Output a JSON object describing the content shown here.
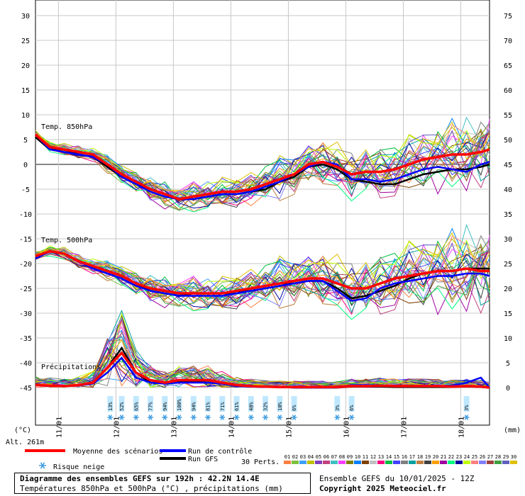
{
  "chart_data": {
    "type": "line",
    "title": "Diagramme des ensembles GEFS sur 192h : 42.2N 14.4E",
    "subtitle": "Températures 850hPa et 500hPa (°C) , précipitations (mm)",
    "ensemble_label": "Ensemble GEFS du 10/01/2025 - 12Z",
    "copyright": "Copyright 2025 Meteociel.fr",
    "left_unit": "(°C)",
    "right_unit": "(mm)",
    "altitude": "Alt. 261m",
    "left_axis": {
      "min": -45,
      "max": 30,
      "ticks": [
        "30",
        "25",
        "20",
        "15",
        "10",
        "5",
        "0",
        "-5",
        "-10",
        "-15",
        "-20",
        "-25",
        "-30",
        "-35",
        "-40",
        "-45"
      ]
    },
    "right_axis": {
      "min": 0,
      "max": 75,
      "ticks": [
        "75",
        "70",
        "65",
        "60",
        "55",
        "50",
        "45",
        "40",
        "35",
        "30",
        "25",
        "20",
        "15",
        "10",
        "5",
        "0"
      ]
    },
    "x_axis": {
      "start_day": 10.6,
      "end_day": 18.5,
      "day_labels": [
        "11/01",
        "12/01",
        "13/01",
        "14/01",
        "15/01",
        "16/01",
        "17/01",
        "18/01"
      ],
      "day_values": [
        11,
        12,
        13,
        14,
        15,
        16,
        17,
        18
      ]
    },
    "panel_labels": {
      "t850": "Temp. 850hPa",
      "t500": "Temp. 500hPa",
      "precip": "Précipitations"
    },
    "legend": {
      "mean": "Moyenne des scénarios",
      "control": "Run de contrôle",
      "gfs": "Run GFS",
      "snow": "Risque neige",
      "perts": "30 Perts."
    },
    "member_labels": [
      "01",
      "02",
      "03",
      "04",
      "05",
      "06",
      "07",
      "08",
      "09",
      "10",
      "11",
      "12",
      "13",
      "14",
      "15",
      "16",
      "17",
      "18",
      "19",
      "20",
      "21",
      "22",
      "23",
      "24",
      "25",
      "26",
      "27",
      "28",
      "29",
      "30"
    ],
    "member_colors": [
      "#ff8040",
      "#80c040",
      "#40a0ff",
      "#c0c000",
      "#8040c0",
      "#c04080",
      "#40c0c0",
      "#ff40ff",
      "#808000",
      "#0080ff",
      "#804000",
      "#c0c0c0",
      "#ff0080",
      "#00c040",
      "#4040ff",
      "#808080",
      "#00a0a0",
      "#c08040",
      "#404040",
      "#ffa000",
      "#a000a0",
      "#00ff80",
      "#0000a0",
      "#c0ff00",
      "#ff8080",
      "#8080ff",
      "#a04040",
      "#40a040",
      "#6060c0",
      "#e0c000"
    ],
    "series_colors": {
      "mean": "#ff0000",
      "control": "#0000ff",
      "gfs": "#000000"
    },
    "snow_risk": [
      {
        "day": 11.9,
        "label": "13%"
      },
      {
        "day": 12.1,
        "label": "52%"
      },
      {
        "day": 12.35,
        "label": "65%"
      },
      {
        "day": 12.6,
        "label": "77%"
      },
      {
        "day": 12.85,
        "label": "94%"
      },
      {
        "day": 13.1,
        "label": "100%"
      },
      {
        "day": 13.35,
        "label": "94%"
      },
      {
        "day": 13.6,
        "label": "81%"
      },
      {
        "day": 13.85,
        "label": "71%"
      },
      {
        "day": 14.1,
        "label": "61%"
      },
      {
        "day": 14.35,
        "label": "48%"
      },
      {
        "day": 14.6,
        "label": "32%"
      },
      {
        "day": 14.85,
        "label": "10%"
      },
      {
        "day": 15.1,
        "label": "6%"
      },
      {
        "day": 15.85,
        "label": "3%"
      },
      {
        "day": 16.1,
        "label": "6%"
      },
      {
        "day": 18.1,
        "label": "3%"
      }
    ],
    "t850": {
      "x": [
        10.6,
        10.85,
        11.1,
        11.35,
        11.6,
        11.85,
        12.1,
        12.35,
        12.6,
        12.85,
        13.1,
        13.35,
        13.6,
        13.85,
        14.1,
        14.35,
        14.6,
        14.85,
        15.1,
        15.35,
        15.6,
        15.85,
        16.1,
        16.35,
        16.6,
        16.85,
        17.1,
        17.35,
        17.6,
        17.85,
        18.1,
        18.35,
        18.5
      ],
      "mean": [
        6,
        3.5,
        3,
        2.5,
        2,
        0,
        -2,
        -3.5,
        -5,
        -6,
        -7,
        -6.5,
        -6,
        -5.5,
        -5.5,
        -5,
        -4,
        -3,
        -2,
        0,
        0.5,
        -0.5,
        -2,
        -1.5,
        -1.5,
        -1,
        0,
        1,
        1.5,
        2,
        2,
        2.5,
        3
      ],
      "control": [
        6,
        3,
        2.5,
        2,
        1.5,
        0,
        -2.5,
        -4,
        -5.5,
        -6.5,
        -7,
        -7,
        -6.5,
        -6,
        -6,
        -5.5,
        -4.5,
        -3.5,
        -2,
        -0.5,
        0.5,
        0,
        -3,
        -3,
        -3.5,
        -3,
        -2,
        -1,
        -0.5,
        -1,
        -1.5,
        0,
        0.5
      ],
      "gfs": [
        5.5,
        3,
        3,
        2,
        1.5,
        -0.5,
        -2.5,
        -4,
        -5,
        -6,
        -7,
        -7,
        -6.5,
        -6,
        -6,
        -5.5,
        -5,
        -3.5,
        -2.5,
        -0.5,
        0,
        -1,
        -3,
        -3.5,
        -4,
        -4,
        -3,
        -2,
        -1.5,
        -1,
        -1,
        -0.5,
        0
      ]
    },
    "t500": {
      "x": [
        10.6,
        10.85,
        11.1,
        11.35,
        11.6,
        11.85,
        12.1,
        12.35,
        12.6,
        12.85,
        13.1,
        13.35,
        13.6,
        13.85,
        14.1,
        14.35,
        14.6,
        14.85,
        15.1,
        15.35,
        15.6,
        15.85,
        16.1,
        16.35,
        16.6,
        16.85,
        17.1,
        17.35,
        17.6,
        17.85,
        18.1,
        18.35,
        18.5
      ],
      "mean": [
        -18.5,
        -17.5,
        -18,
        -19.5,
        -20.5,
        -21.5,
        -22.5,
        -24,
        -25,
        -25.5,
        -26,
        -26,
        -26,
        -26,
        -25.5,
        -25,
        -24.5,
        -24,
        -23.5,
        -23,
        -23,
        -24,
        -25,
        -25,
        -24,
        -23,
        -22.5,
        -22,
        -21.5,
        -21.5,
        -21,
        -21.5,
        -21.5
      ],
      "control": [
        -19,
        -17.5,
        -18,
        -19.5,
        -21,
        -22,
        -23,
        -24.5,
        -25.5,
        -26,
        -26.5,
        -26.5,
        -26.5,
        -26.5,
        -26,
        -25.5,
        -25,
        -24.5,
        -24,
        -23.5,
        -23.5,
        -25.5,
        -27.5,
        -27,
        -25,
        -24,
        -23.5,
        -23,
        -22.5,
        -22.5,
        -22,
        -22,
        -22.5
      ],
      "gfs": [
        -19,
        -17.5,
        -18,
        -19.5,
        -20.5,
        -21.5,
        -22.5,
        -24,
        -25.5,
        -26,
        -26.5,
        -26,
        -26,
        -26,
        -26,
        -25,
        -24.5,
        -24,
        -24,
        -23.5,
        -23.5,
        -25,
        -27,
        -26.5,
        -25.5,
        -24.5,
        -23,
        -22,
        -21.5,
        -21.5,
        -21,
        -21,
        -21
      ]
    },
    "precip": {
      "x": [
        10.6,
        10.85,
        11.1,
        11.35,
        11.6,
        11.85,
        12.1,
        12.35,
        12.6,
        12.85,
        13.1,
        13.35,
        13.6,
        13.85,
        14.1,
        14.35,
        14.6,
        14.85,
        15.1,
        15.35,
        15.6,
        15.85,
        16.1,
        16.35,
        16.6,
        16.85,
        17.1,
        17.35,
        17.6,
        17.85,
        18.1,
        18.35,
        18.5
      ],
      "mean": [
        0.5,
        0.4,
        0.3,
        0.5,
        1,
        4,
        7,
        3,
        1.5,
        1,
        1.5,
        1.5,
        1.5,
        1,
        0.5,
        0.3,
        0.2,
        0.1,
        0.1,
        0.1,
        0.1,
        0.1,
        0.3,
        0.3,
        0.4,
        0.3,
        0.3,
        0.3,
        0.3,
        0.2,
        0.3,
        0.2,
        0
      ],
      "control": [
        0.5,
        0.3,
        0.3,
        0.4,
        0.8,
        3,
        6,
        2,
        1,
        0.8,
        1,
        1,
        1,
        0.8,
        0.3,
        0.2,
        0.1,
        0.1,
        0,
        0,
        0,
        0,
        0.5,
        0.5,
        0.4,
        0.3,
        0.3,
        0.4,
        0.3,
        0.4,
        1,
        2,
        0
      ],
      "gfs": [
        0.5,
        0.3,
        0.3,
        0.5,
        1,
        4,
        8,
        3,
        1,
        0.8,
        1.2,
        1.2,
        1,
        0.8,
        0.3,
        0.2,
        0.1,
        0.1,
        0,
        0,
        0,
        0,
        0.2,
        0.2,
        0.2,
        0.1,
        0.1,
        0.1,
        0.1,
        0.1,
        0.2,
        0.1,
        0
      ]
    }
  }
}
